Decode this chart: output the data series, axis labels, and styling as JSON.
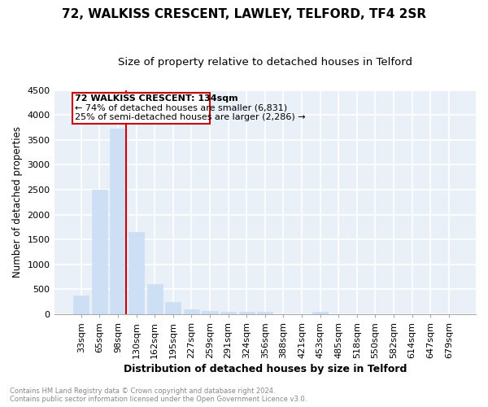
{
  "title1": "72, WALKISS CRESCENT, LAWLEY, TELFORD, TF4 2SR",
  "title2": "Size of property relative to detached houses in Telford",
  "xlabel": "Distribution of detached houses by size in Telford",
  "ylabel": "Number of detached properties",
  "categories": [
    "33sqm",
    "65sqm",
    "98sqm",
    "130sqm",
    "162sqm",
    "195sqm",
    "227sqm",
    "259sqm",
    "291sqm",
    "324sqm",
    "356sqm",
    "388sqm",
    "421sqm",
    "453sqm",
    "485sqm",
    "518sqm",
    "550sqm",
    "582sqm",
    "614sqm",
    "647sqm",
    "679sqm"
  ],
  "values": [
    380,
    2500,
    3720,
    1650,
    600,
    240,
    100,
    60,
    50,
    50,
    50,
    0,
    0,
    50,
    0,
    0,
    0,
    0,
    0,
    0,
    0
  ],
  "bar_color": "#ccdff5",
  "bar_edge_color": "#ccdff5",
  "highlight_line_color": "#cc0000",
  "ylim": [
    0,
    4500
  ],
  "yticks": [
    0,
    500,
    1000,
    1500,
    2000,
    2500,
    3000,
    3500,
    4000,
    4500
  ],
  "annotation_title": "72 WALKISS CRESCENT: 134sqm",
  "annotation_line1": "← 74% of detached houses are smaller (6,831)",
  "annotation_line2": "25% of semi-detached houses are larger (2,286) →",
  "annotation_box_color": "#cc0000",
  "footer1": "Contains HM Land Registry data © Crown copyright and database right 2024.",
  "footer2": "Contains public sector information licensed under the Open Government Licence v3.0.",
  "bg_color": "#eaf0f8",
  "grid_color": "#ffffff",
  "fig_bg_color": "#ffffff",
  "title1_fontsize": 11,
  "title2_fontsize": 9.5,
  "xlabel_fontsize": 9,
  "ylabel_fontsize": 8.5,
  "tick_fontsize": 8
}
